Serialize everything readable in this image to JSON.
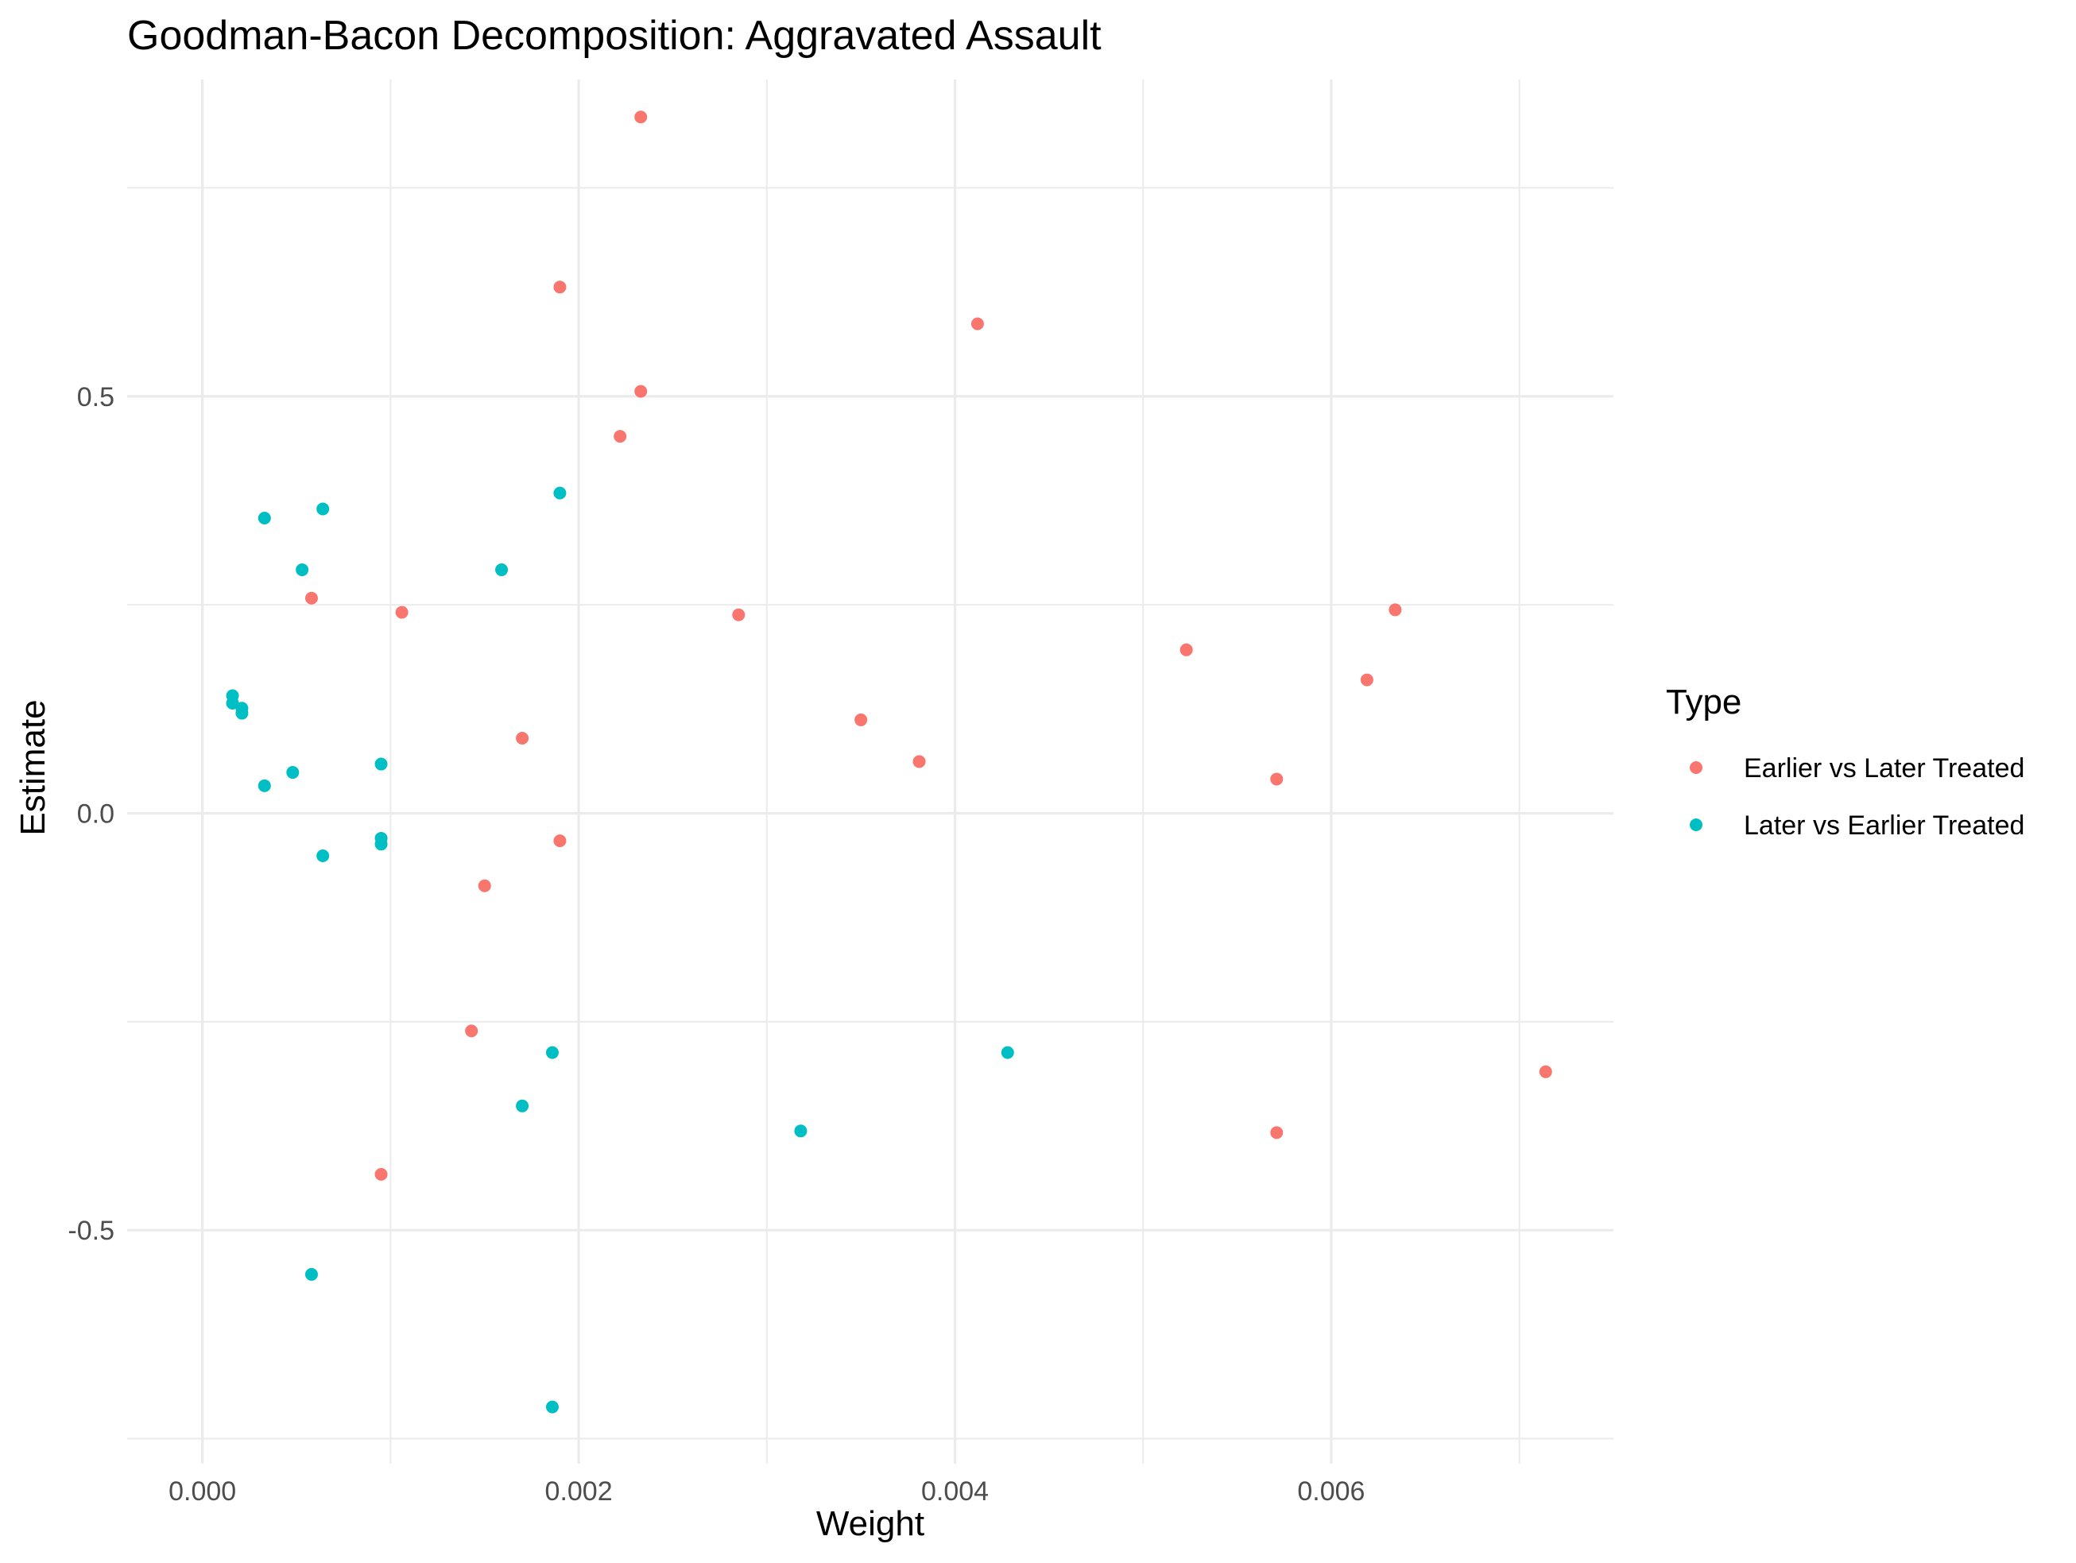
{
  "chart_data": {
    "type": "scatter",
    "title": "Goodman-Bacon Decomposition: Aggravated Assault",
    "xlabel": "Weight",
    "ylabel": "Estimate",
    "xlim": [
      -0.0004,
      0.0075
    ],
    "ylim": [
      -0.78,
      0.88
    ],
    "x_ticks": [
      0.0,
      0.002,
      0.004,
      0.006
    ],
    "x_tick_labels": [
      "0.000",
      "0.002",
      "0.004",
      "0.006"
    ],
    "y_ticks": [
      -0.5,
      0.0,
      0.5
    ],
    "y_tick_labels": [
      "-0.5",
      "0.0",
      "0.5"
    ],
    "grid": true,
    "legend": {
      "title": "Type",
      "position": "right"
    },
    "series": [
      {
        "name": "Earlier vs Later Treated",
        "color": "#F8766D",
        "points": [
          {
            "x": 0.00233,
            "y": 0.835
          },
          {
            "x": 0.0019,
            "y": 0.631
          },
          {
            "x": 0.00412,
            "y": 0.587
          },
          {
            "x": 0.00233,
            "y": 0.506
          },
          {
            "x": 0.00222,
            "y": 0.452
          },
          {
            "x": 0.00058,
            "y": 0.258
          },
          {
            "x": 0.00106,
            "y": 0.241
          },
          {
            "x": 0.00285,
            "y": 0.238
          },
          {
            "x": 0.00634,
            "y": 0.244
          },
          {
            "x": 0.00523,
            "y": 0.196
          },
          {
            "x": 0.00619,
            "y": 0.16
          },
          {
            "x": 0.0035,
            "y": 0.112
          },
          {
            "x": 0.0017,
            "y": 0.09
          },
          {
            "x": 0.00381,
            "y": 0.062
          },
          {
            "x": 0.00571,
            "y": 0.041
          },
          {
            "x": 0.0019,
            "y": -0.033
          },
          {
            "x": 0.0015,
            "y": -0.087
          },
          {
            "x": 0.00143,
            "y": -0.261
          },
          {
            "x": 0.00714,
            "y": -0.31
          },
          {
            "x": 0.00571,
            "y": -0.383
          },
          {
            "x": 0.00095,
            "y": -0.433
          }
        ]
      },
      {
        "name": "Later vs Earlier Treated",
        "color": "#00BFC4",
        "points": [
          {
            "x": 0.00064,
            "y": 0.365
          },
          {
            "x": 0.00033,
            "y": 0.354
          },
          {
            "x": 0.0019,
            "y": 0.384
          },
          {
            "x": 0.00053,
            "y": 0.292
          },
          {
            "x": 0.00159,
            "y": 0.292
          },
          {
            "x": 0.00016,
            "y": 0.141
          },
          {
            "x": 0.00016,
            "y": 0.132
          },
          {
            "x": 0.00021,
            "y": 0.126
          },
          {
            "x": 0.00021,
            "y": 0.12
          },
          {
            "x": 0.00095,
            "y": 0.059
          },
          {
            "x": 0.00048,
            "y": 0.049
          },
          {
            "x": 0.00033,
            "y": 0.033
          },
          {
            "x": 0.00095,
            "y": -0.03
          },
          {
            "x": 0.00095,
            "y": -0.037
          },
          {
            "x": 0.00064,
            "y": -0.051
          },
          {
            "x": 0.00186,
            "y": -0.287
          },
          {
            "x": 0.00428,
            "y": -0.287
          },
          {
            "x": 0.0017,
            "y": -0.351
          },
          {
            "x": 0.00318,
            "y": -0.381
          },
          {
            "x": 0.00058,
            "y": -0.553
          },
          {
            "x": 0.00186,
            "y": -0.712
          }
        ]
      }
    ]
  }
}
